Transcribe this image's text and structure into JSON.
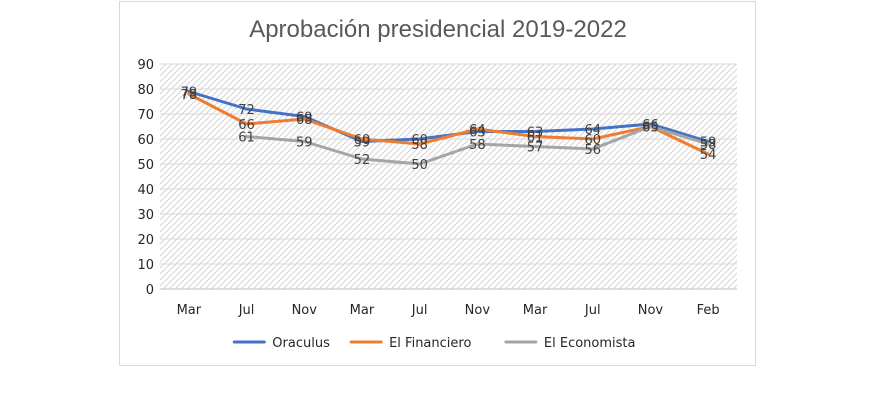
{
  "chart_data": {
    "type": "line",
    "title": "Aprobación presidencial 2019-2022",
    "xlabel": "",
    "ylabel": "",
    "categories": [
      "Mar",
      "Jul",
      "Nov",
      "Mar",
      "Jul",
      "Nov",
      "Mar",
      "Jul",
      "Nov",
      "Feb"
    ],
    "ylim": [
      0,
      90
    ],
    "yticks": [
      0,
      10,
      20,
      30,
      40,
      50,
      60,
      70,
      80,
      90
    ],
    "grid": true,
    "plot_background": "diagonal-hatch",
    "legend_position": "bottom",
    "series": [
      {
        "name": "Oraculus",
        "color": "#4472c4",
        "values": [
          79,
          72,
          69,
          59,
          60,
          63,
          63,
          64,
          66,
          59
        ]
      },
      {
        "name": "El Financiero",
        "color": "#ed7d31",
        "values": [
          78,
          66,
          68,
          60,
          58,
          64,
          61,
          60,
          65,
          54
        ]
      },
      {
        "name": "El Economista",
        "color": "#a5a5a5",
        "values": [
          null,
          61,
          59,
          52,
          50,
          58,
          57,
          56,
          65,
          58
        ]
      }
    ]
  }
}
